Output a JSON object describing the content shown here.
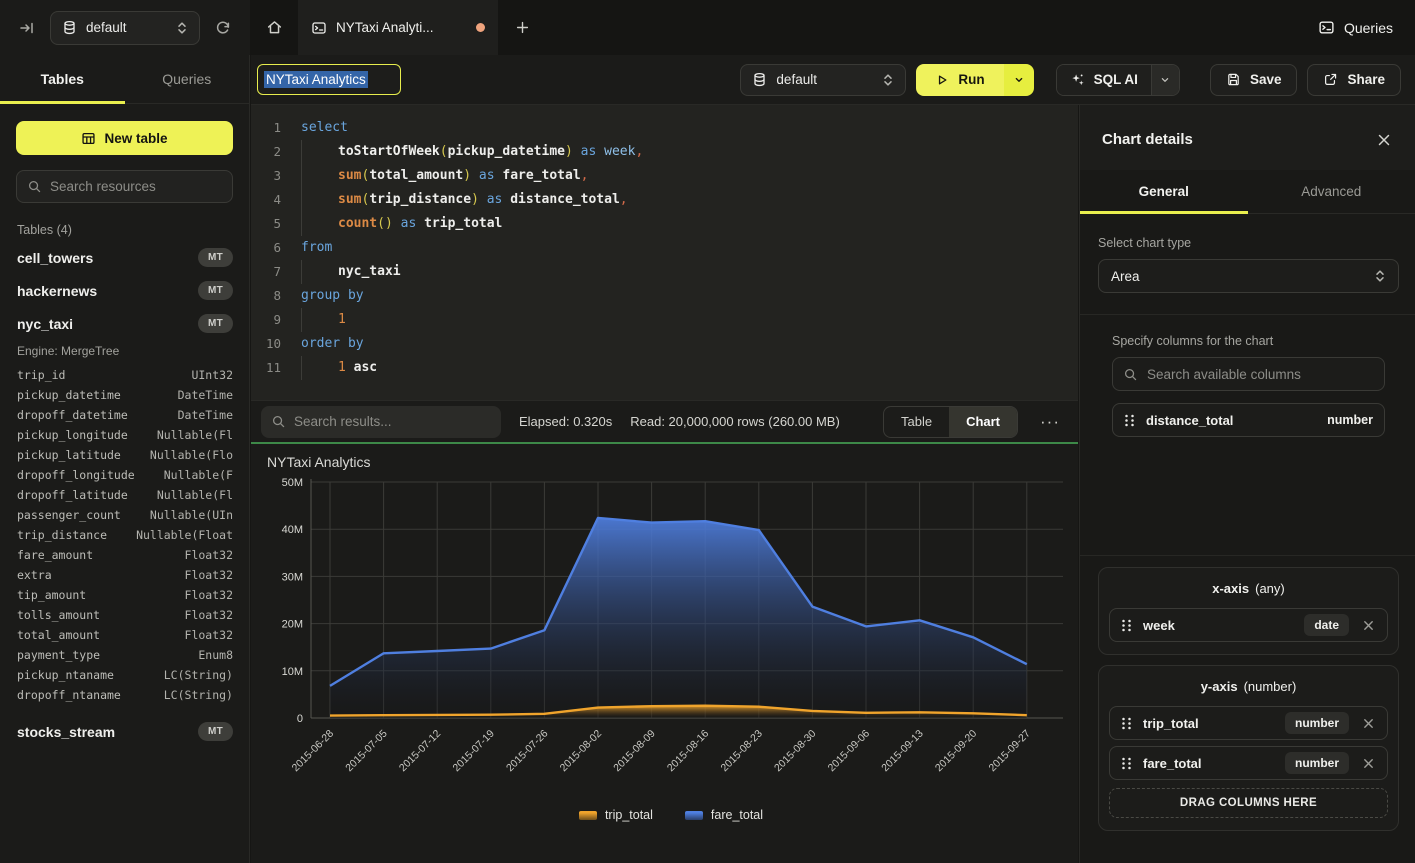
{
  "colors": {
    "accent_yellow": "#eef256",
    "success_green": "#3d8948",
    "unsaved_dot_orange": "#efa37d",
    "chart_blue": "#4f7fe0",
    "chart_orange": "#f0a42c",
    "selection_blue": "#3465a8"
  },
  "topbar": {
    "database_selector": {
      "value": "default"
    },
    "tabs": {
      "active_label": "NYTaxi Analyti..."
    },
    "queries_button": "Queries"
  },
  "sidebar": {
    "tabs": [
      {
        "label": "Tables",
        "active": true
      },
      {
        "label": "Queries",
        "active": false
      }
    ],
    "new_table_button": "New table",
    "search_placeholder": "Search resources",
    "section_header": "Tables (4)",
    "tables": [
      {
        "name": "cell_towers",
        "badge": "MT"
      },
      {
        "name": "hackernews",
        "badge": "MT"
      },
      {
        "name": "nyc_taxi",
        "badge": "MT",
        "engine": "Engine: MergeTree",
        "columns": [
          [
            "trip_id",
            "UInt32"
          ],
          [
            "pickup_datetime",
            "DateTime"
          ],
          [
            "dropoff_datetime",
            "DateTime"
          ],
          [
            "pickup_longitude",
            "Nullable(Fl"
          ],
          [
            "pickup_latitude",
            "Nullable(Flo"
          ],
          [
            "dropoff_longitude",
            "Nullable(F"
          ],
          [
            "dropoff_latitude",
            "Nullable(Fl"
          ],
          [
            "passenger_count",
            "Nullable(UIn"
          ],
          [
            "trip_distance",
            "Nullable(Float"
          ],
          [
            "fare_amount",
            "Float32"
          ],
          [
            "extra",
            "Float32"
          ],
          [
            "tip_amount",
            "Float32"
          ],
          [
            "tolls_amount",
            "Float32"
          ],
          [
            "total_amount",
            "Float32"
          ],
          [
            "payment_type",
            "Enum8"
          ],
          [
            "pickup_ntaname",
            "LC(String)"
          ],
          [
            "dropoff_ntaname",
            "LC(String)"
          ]
        ]
      },
      {
        "name": "stocks_stream",
        "badge": "MT",
        "gap": true
      }
    ]
  },
  "query_toolbar": {
    "title_value": "NYTaxi Analytics",
    "database_selector": "default",
    "run_button": "Run",
    "sql_ai_button": "SQL AI",
    "save_button": "Save",
    "share_button": "Share"
  },
  "editor": {
    "lines": [
      {
        "num": 1,
        "indent": 0,
        "tokens": [
          [
            "kw",
            "select"
          ]
        ]
      },
      {
        "num": 2,
        "indent": 1,
        "tokens": [
          [
            "fnw",
            "toStartOfWeek"
          ],
          [
            "par",
            "("
          ],
          [
            "id",
            "pickup_datetime"
          ],
          [
            "par",
            ")"
          ],
          [
            "sp",
            " "
          ],
          [
            "kw",
            "as"
          ],
          [
            "sp",
            " "
          ],
          [
            "kw2",
            "week"
          ],
          [
            "comma",
            ","
          ]
        ]
      },
      {
        "num": 3,
        "indent": 1,
        "tokens": [
          [
            "fn",
            "sum"
          ],
          [
            "par",
            "("
          ],
          [
            "id",
            "total_amount"
          ],
          [
            "par",
            ")"
          ],
          [
            "sp",
            " "
          ],
          [
            "kw",
            "as"
          ],
          [
            "sp",
            " "
          ],
          [
            "id",
            "fare_total"
          ],
          [
            "comma",
            ","
          ]
        ]
      },
      {
        "num": 4,
        "indent": 1,
        "tokens": [
          [
            "fn",
            "sum"
          ],
          [
            "par",
            "("
          ],
          [
            "id",
            "trip_distance"
          ],
          [
            "par",
            ")"
          ],
          [
            "sp",
            " "
          ],
          [
            "kw",
            "as"
          ],
          [
            "sp",
            " "
          ],
          [
            "id",
            "distance_total"
          ],
          [
            "comma",
            ","
          ]
        ]
      },
      {
        "num": 5,
        "indent": 1,
        "tokens": [
          [
            "fn",
            "count"
          ],
          [
            "par",
            "()"
          ],
          [
            "sp",
            " "
          ],
          [
            "kw",
            "as"
          ],
          [
            "sp",
            " "
          ],
          [
            "id",
            "trip_total"
          ]
        ]
      },
      {
        "num": 6,
        "indent": 0,
        "tokens": [
          [
            "kw",
            "from"
          ]
        ]
      },
      {
        "num": 7,
        "indent": 1,
        "tokens": [
          [
            "id",
            "nyc_taxi"
          ]
        ]
      },
      {
        "num": 8,
        "indent": 0,
        "tokens": [
          [
            "kw",
            "group by"
          ]
        ]
      },
      {
        "num": 9,
        "indent": 1,
        "tokens": [
          [
            "num",
            "1"
          ]
        ]
      },
      {
        "num": 10,
        "indent": 0,
        "tokens": [
          [
            "kw",
            "order by"
          ]
        ]
      },
      {
        "num": 11,
        "indent": 1,
        "tokens": [
          [
            "num",
            "1"
          ],
          [
            "sp",
            " "
          ],
          [
            "id",
            "asc"
          ]
        ]
      }
    ]
  },
  "results_bar": {
    "search_placeholder": "Search results...",
    "elapsed": "Elapsed: 0.320s",
    "read": "Read: 20,000,000 rows (260.00 MB)",
    "view_toggle": [
      {
        "label": "Table",
        "active": false
      },
      {
        "label": "Chart",
        "active": true
      }
    ],
    "more_button": "···"
  },
  "chart_data": {
    "type": "area",
    "title": "NYTaxi Analytics",
    "x": [
      "2015-06-28",
      "2015-07-05",
      "2015-07-12",
      "2015-07-19",
      "2015-07-26",
      "2015-08-02",
      "2015-08-09",
      "2015-08-16",
      "2015-08-23",
      "2015-08-30",
      "2015-09-06",
      "2015-09-13",
      "2015-09-20",
      "2015-09-27"
    ],
    "series": [
      {
        "name": "trip_total",
        "color": "#f0a42c",
        "values": [
          500000,
          600000,
          650000,
          700000,
          900000,
          2200000,
          2500000,
          2600000,
          2400000,
          1500000,
          1100000,
          1200000,
          1000000,
          600000
        ]
      },
      {
        "name": "fare_total",
        "color": "#4f7fe0",
        "values": [
          6800000,
          13700000,
          14200000,
          14700000,
          18600000,
          42400000,
          41400000,
          41700000,
          39800000,
          23600000,
          19400000,
          20700000,
          17100000,
          11400000
        ]
      }
    ],
    "y_ticks": [
      [
        0,
        "0"
      ],
      [
        10000000,
        "10M"
      ],
      [
        20000000,
        "20M"
      ],
      [
        30000000,
        "30M"
      ],
      [
        40000000,
        "40M"
      ],
      [
        50000000,
        "50M"
      ]
    ],
    "ylim": [
      0,
      50000000
    ],
    "grid": true,
    "legend_position": "bottom"
  },
  "chart_panel": {
    "title": "Chart details",
    "tabs": [
      {
        "label": "General",
        "active": true
      },
      {
        "label": "Advanced",
        "active": false
      }
    ],
    "chart_type_label": "Select chart type",
    "chart_type_value": "Area",
    "columns_label": "Specify columns for the chart",
    "columns_search_placeholder": "Search available columns",
    "available_columns": [
      {
        "name": "distance_total",
        "type": "number"
      }
    ],
    "x_axis": {
      "title": "x-axis",
      "constraint": "(any)",
      "items": [
        {
          "name": "week",
          "type": "date"
        }
      ]
    },
    "y_axis": {
      "title": "y-axis",
      "constraint": "(number)",
      "items": [
        {
          "name": "trip_total",
          "type": "number"
        },
        {
          "name": "fare_total",
          "type": "number"
        }
      ]
    },
    "drop_zone": "DRAG COLUMNS HERE"
  }
}
